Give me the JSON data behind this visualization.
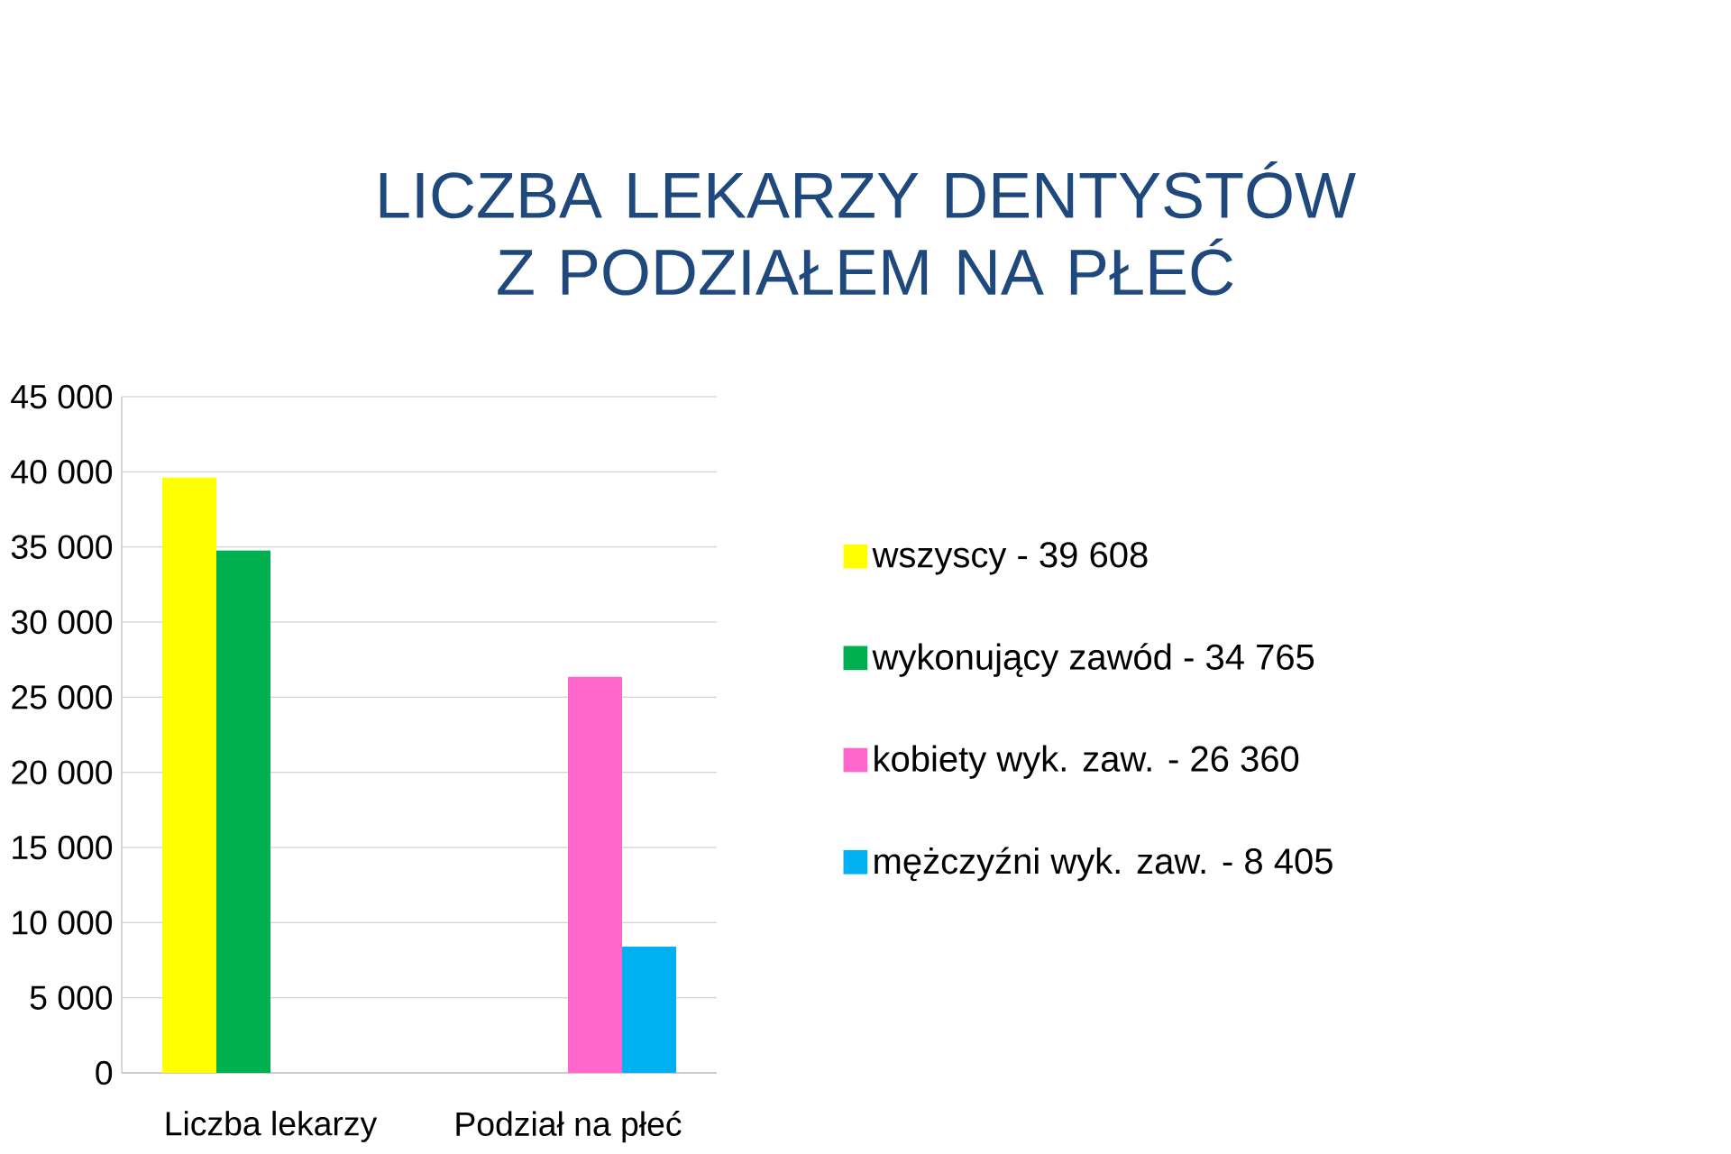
{
  "chart_data": {
    "type": "bar",
    "title": "LICZBA LEKARZY DENTYSTÓW Z PODZIAŁEM NA PŁEĆ",
    "categories": [
      "Liczba lekarzy",
      "Podział na płeć"
    ],
    "series": [
      {
        "name": "wszyscy - 39 608",
        "color": "#ffff00",
        "values": [
          39608,
          null
        ]
      },
      {
        "name": "wykonujący zawód - 34 765",
        "color": "#00b050",
        "values": [
          34765,
          null
        ]
      },
      {
        "name": "kobiety wyk. zaw. - 26 360",
        "color": "#ff66cc",
        "values": [
          null,
          26360
        ]
      },
      {
        "name": "mężczyźni wyk. zaw. - 8 405",
        "color": "#00b0f0",
        "values": [
          null,
          8405
        ]
      }
    ],
    "ylim": [
      0,
      45000
    ],
    "yticks": [
      {
        "value": 0,
        "label": "0"
      },
      {
        "value": 5000,
        "label": "5 000"
      },
      {
        "value": 10000,
        "label": "10 000"
      },
      {
        "value": 15000,
        "label": "15 000"
      },
      {
        "value": 20000,
        "label": "20 000"
      },
      {
        "value": 25000,
        "label": "25 000"
      },
      {
        "value": 30000,
        "label": "30 000"
      },
      {
        "value": 35000,
        "label": "35 000"
      },
      {
        "value": 40000,
        "label": "40 000"
      },
      {
        "value": 45000,
        "label": "45 000"
      }
    ],
    "grid": "y",
    "legend": "right"
  }
}
